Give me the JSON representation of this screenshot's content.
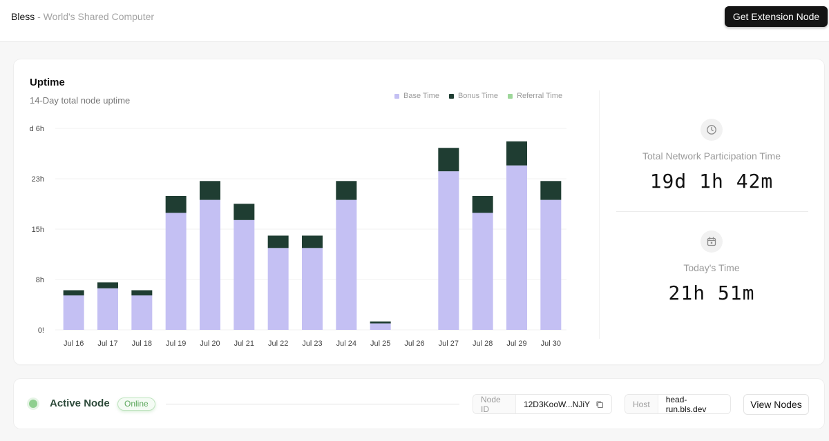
{
  "header": {
    "brand_name": "Bless",
    "brand_tagline": " - World's Shared Computer",
    "cta_label": "Get Extension Node"
  },
  "uptime": {
    "title": "Uptime",
    "subtitle": "14-Day total node uptime",
    "legend": [
      {
        "name": "Base Time",
        "color": "#c4c0f3"
      },
      {
        "name": "Bonus Time",
        "color": "#1f3d32"
      },
      {
        "name": "Referral Time",
        "color": "#9ed79a"
      }
    ]
  },
  "chart_data": {
    "type": "bar",
    "stacked": true,
    "categories": [
      "Jul 16",
      "Jul 17",
      "Jul 18",
      "Jul 19",
      "Jul 20",
      "Jul 21",
      "Jul 22",
      "Jul 23",
      "Jul 24",
      "Jul 25",
      "Jul 26",
      "Jul 27",
      "Jul 28",
      "Jul 29",
      "Jul 30"
    ],
    "series": [
      {
        "name": "Base Time",
        "color": "#c4c0f3",
        "values": [
          5.3,
          6.4,
          5.3,
          18.0,
          20.0,
          16.9,
          12.6,
          12.6,
          20.0,
          1.0,
          0,
          24.4,
          18.0,
          25.3,
          20.0
        ]
      },
      {
        "name": "Bonus Time",
        "color": "#1f3d32",
        "values": [
          0.8,
          0.9,
          0.8,
          2.6,
          2.9,
          2.5,
          1.9,
          1.9,
          2.9,
          0.3,
          0,
          3.6,
          2.6,
          3.7,
          2.9
        ]
      },
      {
        "name": "Referral Time",
        "color": "#9ed79a",
        "values": [
          0,
          0,
          0,
          0,
          0,
          0,
          0,
          0,
          0,
          0,
          0,
          0,
          0,
          0,
          0
        ]
      }
    ],
    "y_ticks": [
      {
        "value": 0,
        "label": "0!"
      },
      {
        "value": 7.75,
        "label": "8h"
      },
      {
        "value": 15.5,
        "label": "15h"
      },
      {
        "value": 23.25,
        "label": "23h"
      },
      {
        "value": 31,
        "label": "d 6h"
      }
    ],
    "ylim": [
      0,
      31
    ],
    "grid": true,
    "legend_position": "top-right"
  },
  "stats": {
    "total_label": "Total Network Participation Time",
    "total_value": "19d 1h 42m",
    "total_icon": "clock-icon",
    "today_label": "Today's Time",
    "today_value": "21h 51m",
    "today_icon": "calendar-icon"
  },
  "node": {
    "title": "Active Node",
    "status": "Online",
    "node_id_label": "Node ID",
    "node_id_value": "12D3KooW...NJiY",
    "host_label": "Host",
    "host_value": "head-run.bls.dev",
    "view_nodes_label": "View Nodes"
  }
}
